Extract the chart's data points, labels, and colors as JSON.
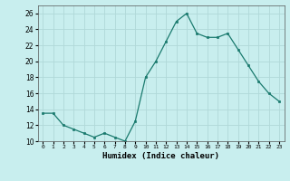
{
  "x": [
    0,
    1,
    2,
    3,
    4,
    5,
    6,
    7,
    8,
    9,
    10,
    11,
    12,
    13,
    14,
    15,
    16,
    17,
    18,
    19,
    20,
    21,
    22,
    23
  ],
  "y": [
    13.5,
    13.5,
    12,
    11.5,
    11,
    10.5,
    11,
    10.5,
    10,
    12.5,
    18,
    20,
    22.5,
    25,
    26,
    23.5,
    23,
    23,
    23.5,
    21.5,
    19.5,
    17.5,
    16,
    15
  ],
  "line_color": "#1a7a6e",
  "marker_color": "#1a7a6e",
  "bg_color": "#c8eeee",
  "grid_color": "#b0d8d8",
  "xlabel": "Humidex (Indice chaleur)",
  "ylim": [
    10,
    27
  ],
  "xlim": [
    -0.5,
    23.5
  ],
  "yticks": [
    10,
    12,
    14,
    16,
    18,
    20,
    22,
    24,
    26
  ],
  "xtick_labels": [
    "0",
    "1",
    "2",
    "3",
    "4",
    "5",
    "6",
    "7",
    "8",
    "9",
    "10",
    "11",
    "12",
    "13",
    "14",
    "15",
    "16",
    "17",
    "18",
    "19",
    "20",
    "21",
    "22",
    "23"
  ]
}
